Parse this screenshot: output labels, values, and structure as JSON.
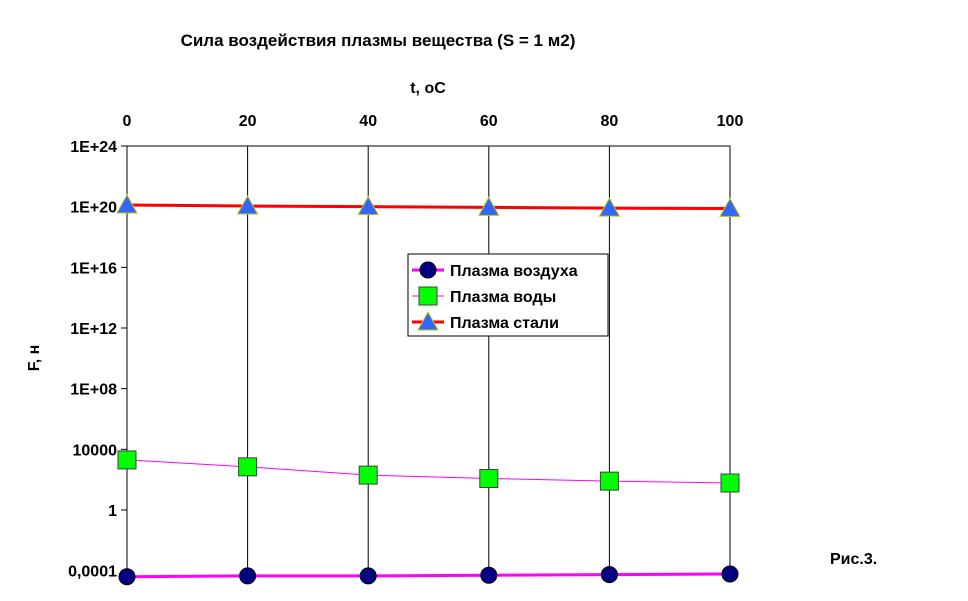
{
  "chart_data": {
    "type": "line",
    "title": "Сила воздействия плазмы вещества (S = 1 м2)",
    "xlabel": "t, oC",
    "ylabel": "F, н",
    "x": [
      0,
      20,
      40,
      60,
      80,
      100
    ],
    "x_tick_labels": [
      "0",
      "20",
      "40",
      "60",
      "80",
      "100"
    ],
    "xlim": [
      0,
      100
    ],
    "x_axis_position": "top",
    "y_scale": "log",
    "ylim": [
      4e-05,
      1e+24
    ],
    "y_ticks": [
      0.0001,
      1,
      10000,
      100000000.0,
      1000000000000.0,
      1e+16,
      1e+20,
      1e+24
    ],
    "y_tick_labels": [
      "0,0001",
      "1",
      "10000",
      "1E+08",
      "1E+12",
      "1E+16",
      "1E+20",
      "1E+24"
    ],
    "grid": "vertical",
    "legend_position": "center-right",
    "series": [
      {
        "name": "Плазма воздуха",
        "values": [
          4e-05,
          4.5e-05,
          4.5e-05,
          5e-05,
          5.5e-05,
          6e-05
        ],
        "color": "#ff00ff",
        "marker": "circle",
        "marker_color": "#000080"
      },
      {
        "name": "Плазма воды",
        "values": [
          2000,
          700,
          200,
          120,
          80,
          60
        ],
        "color": "#ff00ff",
        "marker": "square",
        "marker_color": "#00ff00"
      },
      {
        "name": "Плазма стали",
        "values": [
          1.3e+20,
          1.1e+20,
          1e+20,
          9e+19,
          8e+19,
          7.5e+19
        ],
        "color": "#ff0000",
        "marker": "triangle",
        "marker_color": "#3366ff"
      }
    ]
  },
  "caption": "Рис.3."
}
